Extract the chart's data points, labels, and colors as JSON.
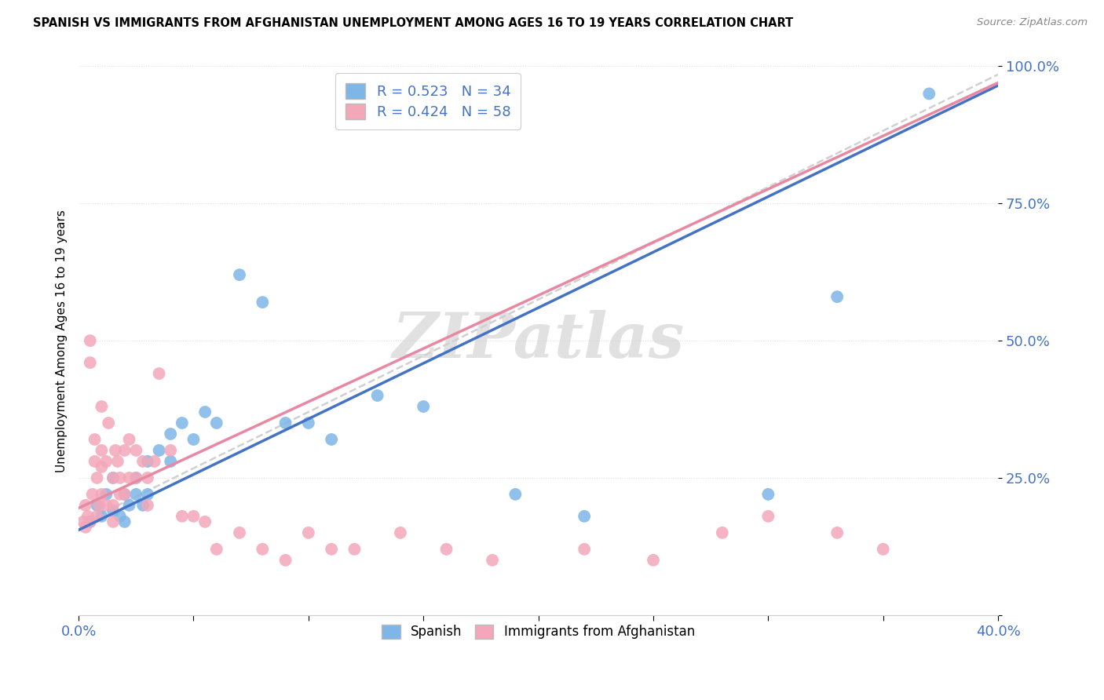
{
  "title": "SPANISH VS IMMIGRANTS FROM AFGHANISTAN UNEMPLOYMENT AMONG AGES 16 TO 19 YEARS CORRELATION CHART",
  "source": "Source: ZipAtlas.com",
  "ylabel": "Unemployment Among Ages 16 to 19 years",
  "xlim": [
    0.0,
    0.4
  ],
  "ylim": [
    0.0,
    1.0
  ],
  "xticks": [
    0.0,
    0.05,
    0.1,
    0.15,
    0.2,
    0.25,
    0.3,
    0.35,
    0.4
  ],
  "yticks": [
    0.0,
    0.25,
    0.5,
    0.75,
    1.0
  ],
  "blue_R": 0.523,
  "blue_N": 34,
  "pink_R": 0.424,
  "pink_N": 58,
  "blue_color": "#7EB6E8",
  "pink_color": "#F4A7B9",
  "blue_line_color": "#4472C4",
  "pink_line_color": "#E888A3",
  "trend_line_color": "#D0D0D0",
  "watermark": "ZIPatlas",
  "watermark_color": "#CACACA",
  "background_color": "#FFFFFF",
  "blue_scatter_x": [
    0.005,
    0.008,
    0.01,
    0.012,
    0.015,
    0.015,
    0.018,
    0.02,
    0.02,
    0.022,
    0.025,
    0.025,
    0.028,
    0.03,
    0.03,
    0.035,
    0.04,
    0.04,
    0.045,
    0.05,
    0.055,
    0.06,
    0.07,
    0.08,
    0.09,
    0.1,
    0.11,
    0.13,
    0.15,
    0.19,
    0.22,
    0.3,
    0.33,
    0.37
  ],
  "blue_scatter_y": [
    0.17,
    0.2,
    0.18,
    0.22,
    0.19,
    0.25,
    0.18,
    0.22,
    0.17,
    0.2,
    0.25,
    0.22,
    0.2,
    0.28,
    0.22,
    0.3,
    0.33,
    0.28,
    0.35,
    0.32,
    0.37,
    0.35,
    0.62,
    0.57,
    0.35,
    0.35,
    0.32,
    0.4,
    0.38,
    0.22,
    0.18,
    0.22,
    0.58,
    0.95
  ],
  "pink_scatter_x": [
    0.002,
    0.003,
    0.003,
    0.004,
    0.005,
    0.005,
    0.005,
    0.006,
    0.007,
    0.007,
    0.008,
    0.008,
    0.009,
    0.01,
    0.01,
    0.01,
    0.01,
    0.012,
    0.012,
    0.013,
    0.015,
    0.015,
    0.015,
    0.016,
    0.017,
    0.018,
    0.018,
    0.02,
    0.02,
    0.022,
    0.022,
    0.025,
    0.025,
    0.028,
    0.03,
    0.03,
    0.033,
    0.035,
    0.04,
    0.045,
    0.05,
    0.055,
    0.06,
    0.07,
    0.08,
    0.09,
    0.1,
    0.11,
    0.12,
    0.14,
    0.16,
    0.18,
    0.22,
    0.25,
    0.28,
    0.3,
    0.33,
    0.35
  ],
  "pink_scatter_y": [
    0.17,
    0.16,
    0.2,
    0.18,
    0.46,
    0.5,
    0.17,
    0.22,
    0.28,
    0.32,
    0.18,
    0.25,
    0.2,
    0.22,
    0.27,
    0.3,
    0.38,
    0.2,
    0.28,
    0.35,
    0.17,
    0.2,
    0.25,
    0.3,
    0.28,
    0.22,
    0.25,
    0.22,
    0.3,
    0.25,
    0.32,
    0.3,
    0.25,
    0.28,
    0.2,
    0.25,
    0.28,
    0.44,
    0.3,
    0.18,
    0.18,
    0.17,
    0.12,
    0.15,
    0.12,
    0.1,
    0.15,
    0.12,
    0.12,
    0.15,
    0.12,
    0.1,
    0.12,
    0.1,
    0.15,
    0.18,
    0.15,
    0.12
  ],
  "blue_line_x0": 0.0,
  "blue_line_y0": 0.155,
  "blue_line_x1": 0.4,
  "blue_line_y1": 0.965,
  "pink_line_x0": 0.0,
  "pink_line_y0": 0.195,
  "pink_line_x1": 0.4,
  "pink_line_y1": 0.97,
  "ref_line_x0": 0.0,
  "ref_line_y0": 0.165,
  "ref_line_x1": 0.4,
  "ref_line_y1": 0.985
}
